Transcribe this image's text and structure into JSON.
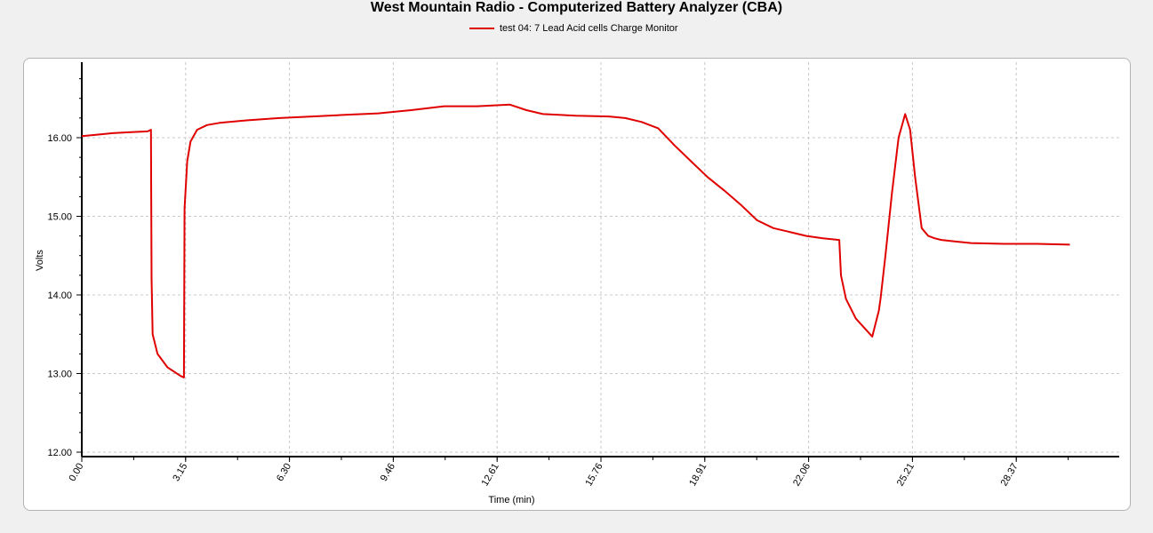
{
  "chart_data": {
    "type": "line",
    "title": "West Mountain Radio - Computerized Battery Analyzer (CBA)",
    "xlabel": "Time (min)",
    "ylabel": "Volts",
    "xlim": [
      0,
      31.5
    ],
    "ylim": [
      12.0,
      16.9
    ],
    "x_ticks": [
      "0.00",
      "3.15",
      "6.30",
      "9.46",
      "12.61",
      "15.76",
      "18.91",
      "22.06",
      "25.21",
      "28.37"
    ],
    "y_ticks": [
      "12.00",
      "13.00",
      "14.00",
      "15.00",
      "16.00"
    ],
    "grid": true,
    "legend_position": "top-center",
    "series": [
      {
        "name": "test 04: 7 Lead Acid cells Charge Monitor",
        "color": "#e00000",
        "x": [
          0,
          0.5,
          1.0,
          1.5,
          2.0,
          2.1,
          2.12,
          2.15,
          2.3,
          2.6,
          3.0,
          3.1,
          3.12,
          3.2,
          3.3,
          3.5,
          3.8,
          4.2,
          5.0,
          6.0,
          7.0,
          8.0,
          9.0,
          10.0,
          11.0,
          12.0,
          13.0,
          13.5,
          14.0,
          15.0,
          16.0,
          16.5,
          17.0,
          17.5,
          18.0,
          18.5,
          19.0,
          19.5,
          20.0,
          20.5,
          21.0,
          21.5,
          22.0,
          22.5,
          23.0,
          23.05,
          23.2,
          23.5,
          24.0,
          24.2,
          24.25,
          24.4,
          24.6,
          24.8,
          25.0,
          25.15,
          25.3,
          25.5,
          25.7,
          25.9,
          26.1,
          26.5,
          27.0,
          28.0,
          29.0,
          30.0
        ],
        "y": [
          16.02,
          16.04,
          16.06,
          16.07,
          16.08,
          16.1,
          14.2,
          13.5,
          13.25,
          13.08,
          12.97,
          12.95,
          15.1,
          15.7,
          15.95,
          16.1,
          16.16,
          16.19,
          16.22,
          16.25,
          16.27,
          16.29,
          16.31,
          16.35,
          16.4,
          16.4,
          16.42,
          16.35,
          16.3,
          16.28,
          16.27,
          16.25,
          16.2,
          16.12,
          15.9,
          15.7,
          15.5,
          15.33,
          15.15,
          14.95,
          14.85,
          14.8,
          14.75,
          14.72,
          14.7,
          14.25,
          13.95,
          13.7,
          13.47,
          13.8,
          13.95,
          14.5,
          15.3,
          16.0,
          16.3,
          16.1,
          15.5,
          14.85,
          14.75,
          14.72,
          14.7,
          14.68,
          14.66,
          14.65,
          14.65,
          14.64
        ]
      }
    ]
  }
}
